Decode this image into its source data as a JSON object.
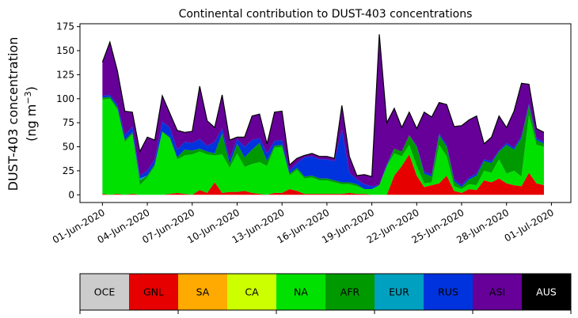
{
  "chart_data": {
    "type": "area",
    "stacked": true,
    "title": "Continental contribution to DUST-403 concentrations",
    "ylabel_line1": "DUST-403 concentration",
    "ylabel_line2_prefix": "(ng m",
    "ylabel_line2_exp": "−3",
    "ylabel_line2_suffix": ")",
    "xlabel": "",
    "ylim": [
      -8,
      178
    ],
    "y_ticks": [
      0,
      25,
      50,
      75,
      100,
      125,
      150,
      175
    ],
    "x_tick_labels": [
      "01-Jun-2020",
      "04-Jun-2020",
      "07-Jun-2020",
      "10-Jun-2020",
      "13-Jun-2020",
      "16-Jun-2020",
      "19-Jun-2020",
      "22-Jun-2020",
      "25-Jun-2020",
      "28-Jun-2020",
      "01-Jul-2020"
    ],
    "x_ticks": [
      0,
      3,
      6,
      9,
      12,
      15,
      18,
      21,
      24,
      27,
      30
    ],
    "xlim": [
      -1.5,
      31.3
    ],
    "x": [
      0,
      0.5,
      1,
      1.5,
      2,
      2.5,
      3,
      3.5,
      4,
      4.5,
      5,
      5.5,
      6,
      6.5,
      7,
      7.5,
      8,
      8.5,
      9,
      9.5,
      10,
      10.5,
      11,
      11.5,
      12,
      12.5,
      13,
      13.5,
      14,
      14.5,
      15,
      15.5,
      16,
      16.5,
      17,
      17.5,
      18,
      18.5,
      19,
      19.5,
      20,
      20.5,
      21,
      21.5,
      22,
      22.5,
      23,
      23.5,
      24,
      24.5,
      25,
      25.5,
      26,
      26.5,
      27,
      27.5,
      28,
      28.5,
      29,
      29.5
    ],
    "grid": false,
    "series": [
      {
        "name": "OCE",
        "color": "#cccccc",
        "values": [
          0,
          0,
          0,
          0,
          0,
          0,
          0,
          0,
          0,
          0,
          0,
          0,
          0,
          0,
          0,
          0,
          0,
          0,
          0,
          0,
          0,
          0,
          0,
          0,
          0,
          0,
          0,
          0,
          0,
          0,
          0,
          0,
          0,
          0,
          0,
          0,
          0,
          0,
          0,
          0,
          0,
          0,
          0,
          0,
          0,
          0,
          0,
          0,
          0,
          0,
          0,
          0,
          0,
          0,
          0,
          0,
          0,
          0,
          0,
          0
        ]
      },
      {
        "name": "GNL",
        "color": "#e60000",
        "values": [
          1,
          0,
          1,
          0,
          1,
          0,
          0,
          0,
          0,
          1,
          2,
          1,
          0,
          5,
          2,
          13,
          2,
          3,
          3,
          4,
          2,
          1,
          0,
          2,
          2,
          6,
          4,
          1,
          1,
          1,
          1,
          1,
          1,
          2,
          1,
          1,
          0,
          0,
          0,
          20,
          30,
          42,
          20,
          8,
          10,
          12,
          20,
          4,
          2,
          6,
          5,
          15,
          13,
          17,
          12,
          10,
          9,
          23,
          12,
          10
        ]
      },
      {
        "name": "SA",
        "color": "#ffaa00",
        "values": [
          0,
          0,
          0,
          0,
          0,
          0,
          0,
          0,
          0,
          0,
          0,
          0,
          0,
          0,
          0,
          0,
          0,
          0,
          0,
          0,
          0,
          0,
          0,
          0,
          0,
          0,
          0,
          0,
          0,
          0,
          0,
          0,
          0,
          0,
          0,
          0,
          0,
          0,
          0,
          0,
          0,
          0,
          0,
          0,
          0,
          0,
          0,
          0,
          0,
          0,
          0,
          0,
          0,
          0,
          0,
          0,
          0,
          0,
          0,
          0
        ]
      },
      {
        "name": "CA",
        "color": "#ccff00",
        "values": [
          0,
          0,
          0,
          0,
          0,
          0,
          0,
          0,
          0,
          0,
          0,
          0,
          0,
          0,
          0,
          0,
          0,
          0,
          0,
          0,
          0,
          0,
          0,
          0,
          0,
          0,
          0,
          0,
          0,
          0,
          0,
          0,
          0,
          0,
          0,
          0,
          0,
          0,
          0,
          0,
          0,
          0,
          0,
          0,
          0,
          0,
          0,
          0,
          0,
          0,
          0,
          0,
          0,
          0,
          0,
          0,
          0,
          0,
          0,
          0
        ]
      },
      {
        "name": "NA",
        "color": "#00e100",
        "values": [
          98,
          100,
          88,
          55,
          62,
          10,
          18,
          30,
          65,
          58,
          35,
          40,
          42,
          40,
          40,
          28,
          40,
          25,
          40,
          25,
          30,
          33,
          30,
          47,
          48,
          14,
          22,
          16,
          17,
          14,
          14,
          12,
          10,
          9,
          8,
          5,
          6,
          10,
          30,
          23,
          10,
          10,
          10,
          4,
          3,
          40,
          20,
          5,
          4,
          5,
          5,
          10,
          10,
          20,
          10,
          15,
          10,
          60,
          40,
          40
        ]
      },
      {
        "name": "AFR",
        "color": "#009900",
        "values": [
          2,
          2,
          2,
          2,
          2,
          5,
          2,
          2,
          1,
          1,
          2,
          6,
          4,
          3,
          3,
          2,
          22,
          4,
          10,
          10,
          15,
          20,
          5,
          2,
          2,
          2,
          2,
          2,
          2,
          2,
          2,
          2,
          2,
          2,
          2,
          0,
          0,
          0,
          0,
          5,
          5,
          10,
          20,
          10,
          6,
          10,
          10,
          5,
          2,
          5,
          10,
          10,
          10,
          8,
          30,
          22,
          40,
          10,
          5,
          3
        ]
      },
      {
        "name": "EUR",
        "color": "#00a0c0",
        "values": [
          0,
          0,
          0,
          0,
          0,
          2,
          0,
          0,
          0,
          0,
          0,
          0,
          0,
          0,
          0,
          0,
          0,
          0,
          0,
          0,
          0,
          0,
          0,
          0,
          0,
          0,
          0,
          0,
          0,
          0,
          0,
          0,
          0,
          0,
          0,
          0,
          0,
          0,
          0,
          0,
          0,
          0,
          0,
          0,
          0,
          0,
          0,
          0,
          0,
          0,
          0,
          0,
          0,
          0,
          0,
          0,
          0,
          0,
          0,
          0
        ]
      },
      {
        "name": "RUS",
        "color": "#0033dd",
        "values": [
          2,
          2,
          3,
          5,
          6,
          3,
          5,
          5,
          10,
          10,
          8,
          8,
          8,
          10,
          6,
          12,
          5,
          5,
          5,
          11,
          10,
          5,
          8,
          5,
          5,
          3,
          5,
          20,
          20,
          20,
          20,
          20,
          55,
          10,
          5,
          5,
          3,
          0,
          2,
          0,
          0,
          0,
          1,
          2,
          2,
          2,
          2,
          2,
          2,
          2,
          2,
          2,
          2,
          1,
          2,
          2,
          2,
          2,
          2,
          2
        ]
      },
      {
        "name": "ASI",
        "color": "#660099",
        "values": [
          35,
          55,
          35,
          25,
          15,
          25,
          35,
          20,
          27,
          15,
          20,
          10,
          12,
          55,
          26,
          15,
          35,
          20,
          2,
          10,
          25,
          25,
          10,
          30,
          30,
          6,
          5,
          2,
          3,
          3,
          3,
          3,
          25,
          17,
          4,
          10,
          10,
          157,
          43,
          42,
          25,
          24,
          18,
          62,
          60,
          32,
          42,
          55,
          62,
          60,
          60,
          16,
          25,
          36,
          16,
          38,
          55,
          20,
          10,
          10
        ]
      },
      {
        "name": "AUS",
        "color": "#000000",
        "values": [
          0,
          0,
          0,
          0,
          0,
          0,
          0,
          0,
          0,
          0,
          0,
          0,
          0,
          0,
          0,
          0,
          0,
          0,
          0,
          0,
          0,
          0,
          0,
          0,
          0,
          0,
          0,
          0,
          0,
          0,
          0,
          0,
          0,
          0,
          0,
          0,
          0,
          0,
          0,
          0,
          0,
          0,
          0,
          0,
          0,
          0,
          0,
          0,
          0,
          0,
          0,
          0,
          0,
          0,
          0,
          0,
          0,
          0,
          0,
          0
        ]
      }
    ],
    "colorbar_labels": [
      {
        "label": "OCE",
        "color": "#cccccc",
        "text_color": "#000000"
      },
      {
        "label": "GNL",
        "color": "#e60000",
        "text_color": "#000000"
      },
      {
        "label": "SA",
        "color": "#ffaa00",
        "text_color": "#000000"
      },
      {
        "label": "CA",
        "color": "#ccff00",
        "text_color": "#000000"
      },
      {
        "label": "NA",
        "color": "#00e100",
        "text_color": "#000000"
      },
      {
        "label": "AFR",
        "color": "#009900",
        "text_color": "#000000"
      },
      {
        "label": "EUR",
        "color": "#00a0c0",
        "text_color": "#000000"
      },
      {
        "label": "RUS",
        "color": "#0033dd",
        "text_color": "#000000"
      },
      {
        "label": "ASI",
        "color": "#660099",
        "text_color": "#000000"
      },
      {
        "label": "AUS",
        "color": "#000000",
        "text_color": "#ffffff"
      }
    ],
    "legend_placement": "bottom"
  }
}
